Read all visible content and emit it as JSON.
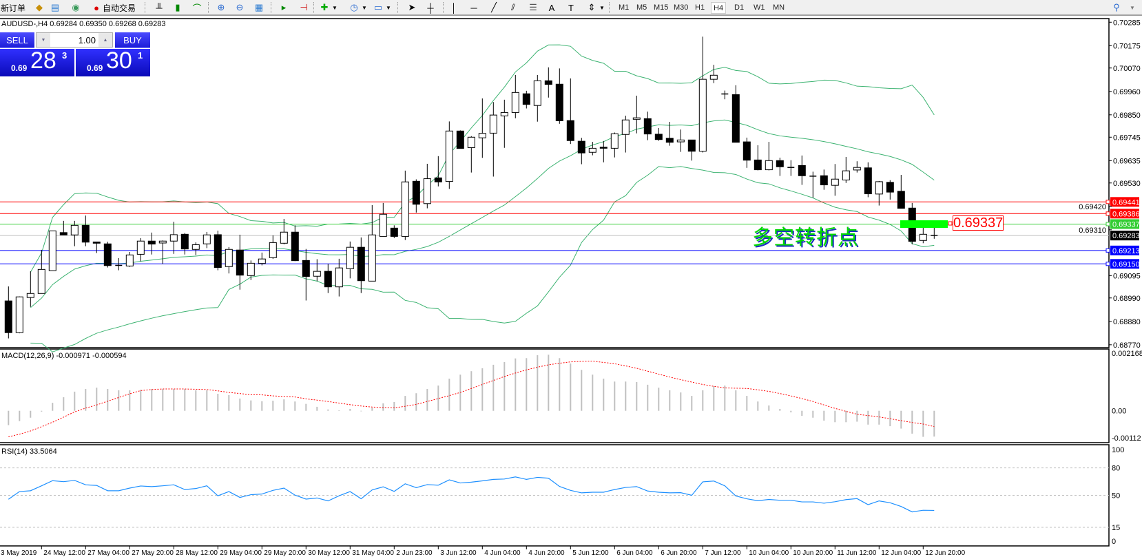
{
  "toolbar": {
    "new_order": "新订单",
    "auto_trading": "自动交易",
    "icons": [
      "experts-icon",
      "market-watch-icon",
      "signals-icon",
      "auto-trading-icon",
      "bar-chart-icon",
      "candlestick-icon",
      "line-chart-icon",
      "zoom-in-icon",
      "zoom-out-icon",
      "tile-windows-icon",
      "autoscroll-icon",
      "chart-shift-icon",
      "indicators-icon",
      "periods-icon",
      "templates-icon",
      "cursor-icon",
      "crosshair-icon",
      "vertical-line-icon",
      "horizontal-line-icon",
      "trendline-icon",
      "equidistant-channel-icon",
      "fibonacci-icon",
      "text-icon",
      "text-label-icon",
      "arrows-icon",
      "search-icon"
    ],
    "timeframes": [
      "M1",
      "M5",
      "M15",
      "M30",
      "H1",
      "H4",
      "D1",
      "W1",
      "MN"
    ],
    "active_timeframe": "H4"
  },
  "chart": {
    "title": "AUDUSD-,H4  0.69284 0.69350 0.69268 0.69283",
    "annotation_text": "多空转折点",
    "annotation_price": "0.69337"
  },
  "trade_panel": {
    "sell_label": "SELL",
    "buy_label": "BUY",
    "lot": "1.00",
    "sell_prefix": "0.69",
    "sell_big": "28",
    "sell_sup": "3",
    "buy_prefix": "0.69",
    "buy_big": "30",
    "buy_sup": "1"
  },
  "price_axis": [
    "0.70285",
    "0.70175",
    "0.70070",
    "0.69960",
    "0.69850",
    "0.69745",
    "0.69635",
    "0.69530",
    "0.69420",
    "0.69310",
    "0.69095",
    "0.68990",
    "0.68880",
    "0.68770"
  ],
  "levels": [
    {
      "price": "0.69441",
      "color": "#ff0000"
    },
    {
      "price": "0.69386",
      "color": "#ff0000"
    },
    {
      "price": "0.69337",
      "color": "#32cd32"
    },
    {
      "price": "0.69283",
      "color": "#000000",
      "line": "#c0c0c0"
    },
    {
      "price": "0.69213",
      "color": "#0000ff"
    },
    {
      "price": "0.69150",
      "color": "#0000ff"
    }
  ],
  "colors": {
    "bollinger": "#3cb371",
    "macd_hist": "#c0c0c0",
    "macd_signal": "#ff0000",
    "rsi": "#1e90ff",
    "annotation": "#00ff00"
  },
  "candles": [
    [
      0.68976,
      0.69044,
      0.688,
      0.68827
    ],
    [
      0.68827,
      0.68997,
      0.68824,
      0.68995
    ],
    [
      0.68992,
      0.69115,
      0.68948,
      0.69011
    ],
    [
      0.69011,
      0.69216,
      0.69011,
      0.69124
    ],
    [
      0.69118,
      0.69305,
      0.69118,
      0.69305
    ],
    [
      0.69297,
      0.69352,
      0.69286,
      0.69286
    ],
    [
      0.69286,
      0.69352,
      0.69233,
      0.69331
    ],
    [
      0.69331,
      0.69377,
      0.69233,
      0.69252
    ],
    [
      0.69253,
      0.69253,
      0.69201,
      0.69247
    ],
    [
      0.69244,
      0.69254,
      0.69133,
      0.69142
    ],
    [
      0.69143,
      0.69177,
      0.6912,
      0.6914
    ],
    [
      0.6914,
      0.69206,
      0.69136,
      0.69192
    ],
    [
      0.69195,
      0.69271,
      0.69162,
      0.69257
    ],
    [
      0.69257,
      0.69297,
      0.69194,
      0.69243
    ],
    [
      0.69248,
      0.6926,
      0.6915,
      0.69257
    ],
    [
      0.69257,
      0.69348,
      0.69197,
      0.69287
    ],
    [
      0.69289,
      0.69295,
      0.69194,
      0.6922
    ],
    [
      0.69218,
      0.69251,
      0.69191,
      0.6924
    ],
    [
      0.69244,
      0.693,
      0.69224,
      0.69286
    ],
    [
      0.69287,
      0.69306,
      0.6912,
      0.69133
    ],
    [
      0.69137,
      0.69229,
      0.69105,
      0.69218
    ],
    [
      0.69215,
      0.69287,
      0.69029,
      0.69097
    ],
    [
      0.69095,
      0.69166,
      0.69074,
      0.69153
    ],
    [
      0.69152,
      0.69203,
      0.69143,
      0.69173
    ],
    [
      0.69179,
      0.69284,
      0.69173,
      0.6925
    ],
    [
      0.69247,
      0.69361,
      0.69242,
      0.69299
    ],
    [
      0.69299,
      0.69331,
      0.69163,
      0.69165
    ],
    [
      0.69166,
      0.6922,
      0.68978,
      0.69091
    ],
    [
      0.69092,
      0.69172,
      0.69069,
      0.69115
    ],
    [
      0.69115,
      0.6915,
      0.69013,
      0.69042
    ],
    [
      0.69042,
      0.69174,
      0.68997,
      0.69131
    ],
    [
      0.69127,
      0.69255,
      0.69082,
      0.69228
    ],
    [
      0.69228,
      0.69274,
      0.69013,
      0.69071
    ],
    [
      0.69069,
      0.69426,
      0.69069,
      0.69286
    ],
    [
      0.69279,
      0.69436,
      0.69279,
      0.69383
    ],
    [
      0.69318,
      0.69331,
      0.69271,
      0.69279
    ],
    [
      0.69279,
      0.69588,
      0.69262,
      0.69535
    ],
    [
      0.69538,
      0.69547,
      0.69391,
      0.6943
    ],
    [
      0.69433,
      0.6962,
      0.69411,
      0.6955
    ],
    [
      0.69554,
      0.69656,
      0.69514,
      0.69535
    ],
    [
      0.69537,
      0.69819,
      0.69502,
      0.69774
    ],
    [
      0.69774,
      0.69777,
      0.69692,
      0.69692
    ],
    [
      0.69696,
      0.6975,
      0.69579,
      0.69745
    ],
    [
      0.69742,
      0.69927,
      0.69648,
      0.69763
    ],
    [
      0.69764,
      0.6991,
      0.6956,
      0.69849
    ],
    [
      0.69845,
      0.69921,
      0.69695,
      0.69861
    ],
    [
      0.69861,
      0.70037,
      0.69834,
      0.69955
    ],
    [
      0.69949,
      0.69963,
      0.6988,
      0.69899
    ],
    [
      0.69894,
      0.70037,
      0.69818,
      0.7001
    ],
    [
      0.7001,
      0.70073,
      0.69931,
      0.69993
    ],
    [
      0.69994,
      0.70068,
      0.69808,
      0.69822
    ],
    [
      0.69823,
      0.70021,
      0.69713,
      0.69729
    ],
    [
      0.69726,
      0.69742,
      0.69618,
      0.69671
    ],
    [
      0.69674,
      0.69723,
      0.6966,
      0.69693
    ],
    [
      0.69698,
      0.69727,
      0.69627,
      0.69693
    ],
    [
      0.69693,
      0.69767,
      0.6965,
      0.69761
    ],
    [
      0.69758,
      0.69846,
      0.69673,
      0.69826
    ],
    [
      0.69829,
      0.6994,
      0.69763,
      0.69836
    ],
    [
      0.69832,
      0.69865,
      0.69731,
      0.6976
    ],
    [
      0.69759,
      0.69788,
      0.69728,
      0.69734
    ],
    [
      0.6974,
      0.69817,
      0.69705,
      0.69721
    ],
    [
      0.69723,
      0.69781,
      0.69676,
      0.69732
    ],
    [
      0.69732,
      0.69732,
      0.69635,
      0.69679
    ],
    [
      0.69679,
      0.70217,
      0.69673,
      0.70017
    ],
    [
      0.70017,
      0.70085,
      0.69999,
      0.70036
    ],
    [
      0.69948,
      0.69964,
      0.69923,
      0.69948
    ],
    [
      0.69945,
      0.69989,
      0.69721,
      0.69721
    ],
    [
      0.69723,
      0.69743,
      0.69601,
      0.69637
    ],
    [
      0.69638,
      0.69707,
      0.69589,
      0.69592
    ],
    [
      0.69592,
      0.69723,
      0.69589,
      0.69635
    ],
    [
      0.69635,
      0.69649,
      0.69563,
      0.69606
    ],
    [
      0.69603,
      0.69637,
      0.69563,
      0.69603
    ],
    [
      0.69612,
      0.69659,
      0.69521,
      0.69564
    ],
    [
      0.69562,
      0.69583,
      0.69461,
      0.69562
    ],
    [
      0.69564,
      0.69593,
      0.69498,
      0.69521
    ],
    [
      0.69519,
      0.69619,
      0.6947,
      0.69548
    ],
    [
      0.69544,
      0.69652,
      0.6953,
      0.69587
    ],
    [
      0.69591,
      0.69632,
      0.69579,
      0.69603
    ],
    [
      0.69601,
      0.69627,
      0.69463,
      0.69479
    ],
    [
      0.69478,
      0.69539,
      0.69424,
      0.69536
    ],
    [
      0.69533,
      0.69543,
      0.69452,
      0.69487
    ],
    [
      0.69491,
      0.69568,
      0.69411,
      0.69411
    ],
    [
      0.69412,
      0.69436,
      0.69242,
      0.69256
    ],
    [
      0.6926,
      0.69319,
      0.69247,
      0.69289
    ],
    [
      0.69284,
      0.6935,
      0.69268,
      0.69283
    ]
  ],
  "macd": {
    "label": "MACD(12,26,9) -0.000971 -0.000594",
    "axis": [
      "0.002168",
      "0.00",
      "-0.00112"
    ],
    "main": [
      -0.00054,
      -0.00039,
      -0.00026,
      -3e-05,
      0.0003,
      0.00051,
      0.00072,
      0.00082,
      0.00087,
      0.00082,
      0.00077,
      0.00077,
      0.00079,
      0.00082,
      0.00082,
      0.00082,
      0.00082,
      0.00077,
      0.00077,
      0.00064,
      0.00059,
      0.00046,
      0.00039,
      0.00036,
      0.00038,
      0.00043,
      0.00035,
      0.00026,
      0.00015,
      5e-05,
      2e-05,
      7e-05,
      -2e-05,
      0.00011,
      0.00028,
      0.00033,
      0.00056,
      0.00066,
      0.00082,
      0.00095,
      0.00121,
      0.00136,
      0.00149,
      0.0016,
      0.00173,
      0.00183,
      0.00197,
      0.00198,
      0.00209,
      0.00211,
      0.00198,
      0.00178,
      0.00154,
      0.00136,
      0.00121,
      0.0011,
      0.0011,
      0.00108,
      0.00098,
      0.00087,
      0.00077,
      0.00069,
      0.00056,
      0.00077,
      0.00093,
      0.00095,
      0.00077,
      0.00056,
      0.00035,
      0.0002,
      7e-05,
      -6e-05,
      -0.00019,
      -0.00026,
      -0.00037,
      -0.00043,
      -0.00043,
      -0.00041,
      -0.00052,
      -0.00052,
      -0.00058,
      -0.00067,
      -0.00086,
      -0.00098,
      -0.000971
    ],
    "signal": [
      -0.00098,
      -0.00088,
      -0.00076,
      -0.0006,
      -0.00043,
      -0.00024,
      -4e-05,
      0.0001,
      0.00022,
      0.00036,
      0.0005,
      0.00064,
      0.00076,
      0.0008,
      0.00082,
      0.00082,
      0.00082,
      0.00081,
      0.0008,
      0.00075,
      0.00069,
      0.00065,
      0.0006,
      0.0006,
      0.00056,
      0.00054,
      0.00052,
      0.00045,
      0.0004,
      0.00035,
      0.00029,
      0.00023,
      0.00018,
      0.00014,
      0.00012,
      0.00011,
      0.00017,
      0.00024,
      0.00035,
      0.00046,
      0.00057,
      0.00069,
      0.00084,
      0.00099,
      0.00114,
      0.00129,
      0.00142,
      0.00154,
      0.00164,
      0.00173,
      0.00179,
      0.00184,
      0.00186,
      0.00187,
      0.00182,
      0.00177,
      0.00169,
      0.0016,
      0.00149,
      0.00138,
      0.00127,
      0.00117,
      0.00108,
      0.00099,
      0.00092,
      0.00086,
      0.00085,
      0.00084,
      0.00079,
      0.00073,
      0.00065,
      0.00056,
      0.00046,
      0.00035,
      0.00022,
      9e-05,
      -2e-05,
      -0.00013,
      -0.00018,
      -0.00023,
      -0.0003,
      -0.00037,
      -0.00044,
      -0.0005,
      -0.000594
    ]
  },
  "rsi": {
    "label": "RSI(14) 33.5064",
    "axis": [
      "100",
      "80",
      "50",
      "15",
      "0"
    ],
    "values": [
      45.7,
      54.1,
      55.0,
      60.4,
      66.0,
      64.9,
      66.3,
      61.5,
      60.8,
      55.0,
      55.0,
      57.9,
      60.2,
      59.5,
      60.4,
      61.5,
      56.3,
      57.4,
      60.4,
      49.5,
      54.1,
      47.7,
      50.7,
      51.4,
      55.4,
      57.9,
      50.2,
      45.9,
      47.1,
      43.9,
      49.5,
      54.1,
      46.2,
      55.9,
      59.3,
      54.3,
      62.6,
      58.4,
      61.7,
      61.1,
      66.9,
      63.5,
      64.4,
      65.8,
      67.4,
      67.8,
      70.1,
      67.4,
      69.6,
      68.7,
      59.7,
      55.4,
      52.7,
      53.4,
      53.4,
      56.3,
      58.6,
      59.5,
      54.7,
      53.4,
      52.7,
      52.9,
      50.0,
      64.7,
      65.6,
      60.4,
      49.3,
      46.2,
      44.1,
      45.5,
      44.6,
      44.6,
      42.8,
      42.8,
      41.4,
      43.0,
      45.3,
      46.4,
      39.8,
      43.9,
      41.9,
      37.8,
      31.9,
      33.7,
      33.5064
    ]
  },
  "time_axis": [
    "3 May 2019",
    "24 May 12:00",
    "27 May 04:00",
    "27 May 20:00",
    "28 May 12:00",
    "29 May 04:00",
    "29 May 20:00",
    "30 May 12:00",
    "31 May 04:00",
    "2 Jun 23:00",
    "3 Jun 12:00",
    "4 Jun 04:00",
    "4 Jun 20:00",
    "5 Jun 12:00",
    "6 Jun 04:00",
    "6 Jun 20:00",
    "7 Jun 12:00",
    "10 Jun 04:00",
    "10 Jun 20:00",
    "11 Jun 12:00",
    "12 Jun 04:00",
    "12 Jun 20:00"
  ]
}
